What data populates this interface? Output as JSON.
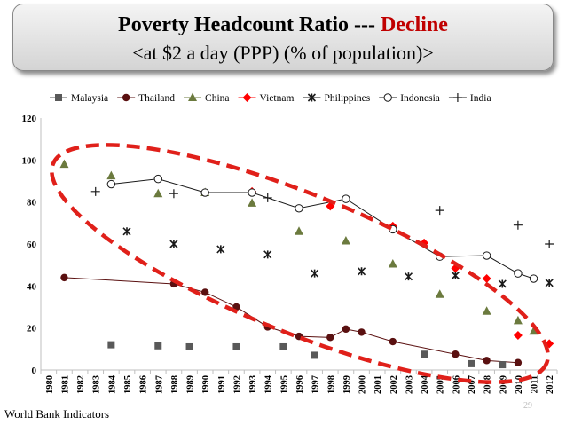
{
  "header": {
    "title_main": "Poverty Headcount Ratio --- ",
    "title_highlight": "Decline",
    "subtitle": "<at $2 a day (PPP) (% of population)>"
  },
  "footer": {
    "source": "World Bank Indicators",
    "page_number": "29"
  },
  "colors": {
    "highlight": "#c00000",
    "ellipse": "#e0201a",
    "malaysia": "#595959",
    "thailand": "#5a1010",
    "china": "#6b7a3e",
    "vietnam": "#ff0000",
    "philippines": "#1a1a1a",
    "indonesia": "#1a1a1a",
    "india": "#1a1a1a"
  },
  "chart_data": {
    "type": "scatter",
    "title": "Poverty Headcount Ratio --- Decline",
    "subtitle": "<at $2 a day (PPP) (% of population)>",
    "xlabel": "",
    "ylabel": "",
    "ylim": [
      0,
      120
    ],
    "yticks": [
      0,
      20,
      40,
      60,
      80,
      100,
      120
    ],
    "x": [
      "1980",
      "1981",
      "1982",
      "1983",
      "1984",
      "1985",
      "1986",
      "1987",
      "1988",
      "1989",
      "1990",
      "1991",
      "1992",
      "1993",
      "1994",
      "1995",
      "1996",
      "1997",
      "1998",
      "1999",
      "2000",
      "2001",
      "2002",
      "2003",
      "2004",
      "2005",
      "2006",
      "2007",
      "2008",
      "2009",
      "2010",
      "2011",
      "2012"
    ],
    "legend_position": "top",
    "annotation": "red dashed ellipse enclosing the declining trend",
    "series": [
      {
        "name": "Malaysia",
        "marker": "square",
        "connect": false,
        "points": [
          [
            "1984",
            12
          ],
          [
            "1987",
            11.5
          ],
          [
            "1989",
            11
          ],
          [
            "1992",
            11
          ],
          [
            "1995",
            11
          ],
          [
            "1997",
            7
          ],
          [
            "2004",
            7.5
          ],
          [
            "2007",
            3
          ],
          [
            "2009",
            2.5
          ]
        ]
      },
      {
        "name": "Thailand",
        "marker": "circle-filled",
        "connect": true,
        "points": [
          [
            "1981",
            44
          ],
          [
            "1988",
            41
          ],
          [
            "1990",
            37
          ],
          [
            "1992",
            30
          ],
          [
            "1994",
            20.5
          ],
          [
            "1996",
            16
          ],
          [
            "1998",
            15.5
          ],
          [
            "1999",
            19.5
          ],
          [
            "2000",
            18
          ],
          [
            "2002",
            13.5
          ],
          [
            "2006",
            7.5
          ],
          [
            "2008",
            4.5
          ],
          [
            "2010",
            3.5
          ]
        ]
      },
      {
        "name": "China",
        "marker": "triangle",
        "connect": false,
        "points": [
          [
            "1981",
            98
          ],
          [
            "1984",
            92.5
          ],
          [
            "1987",
            84
          ],
          [
            "1990",
            84.5
          ],
          [
            "1993",
            79.5
          ],
          [
            "1996",
            66
          ],
          [
            "1999",
            61.5
          ],
          [
            "2002",
            50.5
          ],
          [
            "2005",
            36
          ],
          [
            "2008",
            28
          ],
          [
            "2010",
            23.5
          ],
          [
            "2011",
            18.5
          ]
        ]
      },
      {
        "name": "Vietnam",
        "marker": "diamond",
        "connect": false,
        "points": [
          [
            "1993",
            85
          ],
          [
            "1998",
            78
          ],
          [
            "2002",
            68.5
          ],
          [
            "2004",
            60.5
          ],
          [
            "2006",
            48.5
          ],
          [
            "2008",
            43.5
          ],
          [
            "2010",
            16.5
          ],
          [
            "2012",
            12.5
          ]
        ]
      },
      {
        "name": "Philippines",
        "marker": "star",
        "connect": false,
        "points": [
          [
            "1985",
            66
          ],
          [
            "1988",
            60
          ],
          [
            "1991",
            57.5
          ],
          [
            "1994",
            55
          ],
          [
            "1997",
            46
          ],
          [
            "2000",
            47
          ],
          [
            "2003",
            44.5
          ],
          [
            "2006",
            45
          ],
          [
            "2009",
            41
          ],
          [
            "2012",
            41.5
          ]
        ]
      },
      {
        "name": "Indonesia",
        "marker": "circle-open",
        "connect": true,
        "points": [
          [
            "1984",
            88.5
          ],
          [
            "1987",
            91
          ],
          [
            "1990",
            84.5
          ],
          [
            "1993",
            84.5
          ],
          [
            "1996",
            77
          ],
          [
            "1999",
            81.5
          ],
          [
            "2002",
            67
          ],
          [
            "2005",
            54
          ],
          [
            "2008",
            54.5
          ],
          [
            "2010",
            46
          ],
          [
            "2011",
            43.5
          ]
        ]
      },
      {
        "name": "India",
        "marker": "plus",
        "connect": false,
        "points": [
          [
            "1983",
            85
          ],
          [
            "1988",
            84
          ],
          [
            "1994",
            82
          ],
          [
            "2005",
            76
          ],
          [
            "2010",
            69
          ],
          [
            "2012",
            60
          ]
        ]
      }
    ]
  }
}
